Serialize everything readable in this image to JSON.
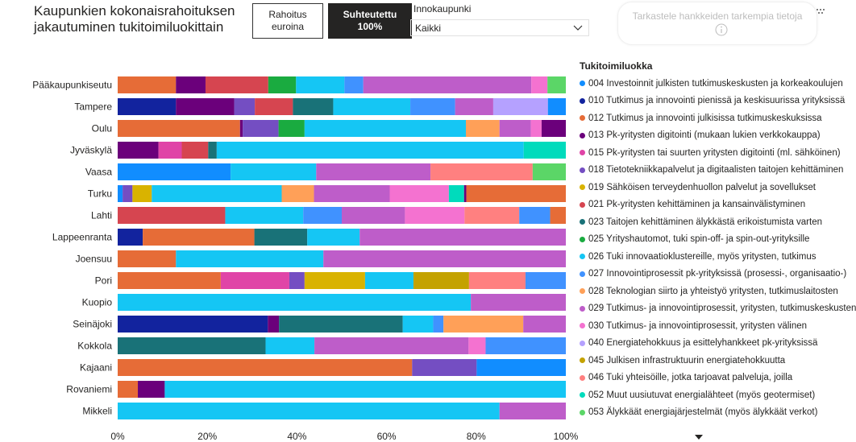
{
  "header": {
    "title_line1": "Kaupunkien kokonaisrahoituksen",
    "title_line2": "jakautuminen tukitoimiluokittain",
    "toggle_euros_line1": "Rahoitus",
    "toggle_euros_line2": "euroina",
    "toggle_percent_line1": "Suhteutettu",
    "toggle_percent_line2": "100%",
    "slicer_label": "Innokaupunki",
    "slicer_value": "Kaikki",
    "info_card_text": "Tarkastele hankkeiden tarkempia tietoja"
  },
  "legend_title": "Tukitoimiluokka",
  "chart_data": {
    "type": "bar",
    "orientation": "horizontal",
    "stacked": "100%",
    "xlim": [
      0,
      100
    ],
    "x_ticks": [
      "0%",
      "20%",
      "40%",
      "60%",
      "80%",
      "100%"
    ],
    "categories": [
      "Pääkaupunkiseutu",
      "Tampere",
      "Oulu",
      "Jyväskylä",
      "Vaasa",
      "Turku",
      "Lahti",
      "Lappeenranta",
      "Joensuu",
      "Pori",
      "Kuopio",
      "Seinäjoki",
      "Kokkola",
      "Kajaani",
      "Rovaniemi",
      "Mikkeli"
    ],
    "legend": [
      {
        "name": "004 Investoinnit julkisten tutkimuskeskusten ja korkeakoulujen",
        "color": "#118dff"
      },
      {
        "name": "010 Tutkimus ja innovointi pienissä ja keskisuurissa yrityksissä",
        "color": "#12239e"
      },
      {
        "name": "012 Tutkimus ja innovointi julkisissa tutkimuskeskuksissa",
        "color": "#e66c37"
      },
      {
        "name": "013 Pk-yritysten digitointi (mukaan lukien verkkokauppa)",
        "color": "#6b007b"
      },
      {
        "name": "015 Pk-yritysten tai suurten yritysten digitointi (ml. sähköinen)",
        "color": "#e044a7"
      },
      {
        "name": "018 Tietotekniikkapalvelut ja digitaalisten taitojen kehittäminen",
        "color": "#744ec2"
      },
      {
        "name": "019 Sähköisen terveydenhuollon palvelut ja sovellukset",
        "color": "#d9b300"
      },
      {
        "name": "021 Pk-yritysten kehittäminen ja kansainvälistyminen",
        "color": "#d64550"
      },
      {
        "name": "023 Taitojen kehittäminen älykkästä erikoistumista varten",
        "color": "#197278"
      },
      {
        "name": "025 Yrityshautomot, tuki spin-off- ja spin-out-yrityksille",
        "color": "#1aab40"
      },
      {
        "name": "026 Tuki innovaatioklustereille, myös yritysten, tutkimus",
        "color": "#15c6f4"
      },
      {
        "name": "027 Innovointiprosessit pk-yrityksissä (prosessi-, organisaatio-)",
        "color": "#4092ff"
      },
      {
        "name": "028 Teknologian siirto ja yhteistyö yritysten, tutkimuslaitosten",
        "color": "#ffa058"
      },
      {
        "name": "029 Tutkimus- ja innovointiprosessit, yritysten, tutkimuskeskusten",
        "color": "#be5dc9"
      },
      {
        "name": "030 Tutkimus- ja innovointiprosessit, yritysten välinen",
        "color": "#f472d0"
      },
      {
        "name": "040 Energiatehokkuus ja esittelyhankkeet pk-yrityksissä",
        "color": "#b5a1ff"
      },
      {
        "name": "045 Julkisen infrastruktuurin energiatehokkuutta",
        "color": "#c4a200"
      },
      {
        "name": "046 Tuki yhteisöille, jotka tarjoavat palveluja, joilla",
        "color": "#ff8080"
      },
      {
        "name": "052 Muut uusiutuvat energialähteet (myös geotermiset)",
        "color": "#00dbbc"
      },
      {
        "name": "053 Älykkäät energiajärjestelmät (myös älykkäät verkot)",
        "color": "#5bd667"
      }
    ],
    "rows": [
      {
        "category": "Pääkaupunkiseutu",
        "segments": [
          {
            "code": "012",
            "value": 13
          },
          {
            "code": "013",
            "value": 6.6
          },
          {
            "code": "021",
            "value": 14
          },
          {
            "code": "025",
            "value": 6.2
          },
          {
            "code": "026",
            "value": 10.8
          },
          {
            "code": "027",
            "value": 4.2
          },
          {
            "code": "029",
            "value": 37.5
          },
          {
            "code": "030",
            "value": 3.6
          },
          {
            "code": "053",
            "value": 4.1
          }
        ]
      },
      {
        "category": "Tampere",
        "segments": [
          {
            "code": "010",
            "value": 13
          },
          {
            "code": "013",
            "value": 13
          },
          {
            "code": "018",
            "value": 4.6
          },
          {
            "code": "021",
            "value": 8.5
          },
          {
            "code": "023",
            "value": 9
          },
          {
            "code": "026",
            "value": 17.2
          },
          {
            "code": "027",
            "value": 10
          },
          {
            "code": "029",
            "value": 8.5
          },
          {
            "code": "040",
            "value": 12.2
          },
          {
            "code": "004",
            "value": 4
          }
        ]
      },
      {
        "category": "Oulu",
        "segments": [
          {
            "code": "012",
            "value": 27.3
          },
          {
            "code": "013",
            "value": 0.6
          },
          {
            "code": "018",
            "value": 8
          },
          {
            "code": "025",
            "value": 5.8
          },
          {
            "code": "026",
            "value": 36
          },
          {
            "code": "028",
            "value": 7.5
          },
          {
            "code": "029",
            "value": 7
          },
          {
            "code": "030",
            "value": 2.4
          },
          {
            "code": "013",
            "value": 5.4
          }
        ]
      },
      {
        "category": "Jyväskylä",
        "segments": [
          {
            "code": "013",
            "value": 9.1
          },
          {
            "code": "015",
            "value": 5.2
          },
          {
            "code": "021",
            "value": 5.9
          },
          {
            "code": "023",
            "value": 1.9
          },
          {
            "code": "026",
            "value": 68.5
          },
          {
            "code": "052",
            "value": 9.4
          }
        ]
      },
      {
        "category": "Vaasa",
        "segments": [
          {
            "code": "004",
            "value": 25.2
          },
          {
            "code": "026",
            "value": 19.1
          },
          {
            "code": "029",
            "value": 25.5
          },
          {
            "code": "046",
            "value": 22.8
          },
          {
            "code": "053",
            "value": 7.4
          }
        ]
      },
      {
        "category": "Turku",
        "segments": [
          {
            "code": "004",
            "value": 1.1
          },
          {
            "code": "018",
            "value": 2.2
          },
          {
            "code": "019",
            "value": 4.3
          },
          {
            "code": "026",
            "value": 29
          },
          {
            "code": "028",
            "value": 7.2
          },
          {
            "code": "029",
            "value": 16.9
          },
          {
            "code": "030",
            "value": 13.2
          },
          {
            "code": "052",
            "value": 3.4
          },
          {
            "code": "013",
            "value": 0.5
          },
          {
            "code": "012",
            "value": 22.2
          }
        ]
      },
      {
        "category": "Lahti",
        "segments": [
          {
            "code": "021",
            "value": 24
          },
          {
            "code": "026",
            "value": 17.4
          },
          {
            "code": "027",
            "value": 8.6
          },
          {
            "code": "029",
            "value": 14.1
          },
          {
            "code": "030",
            "value": 13.3
          },
          {
            "code": "046",
            "value": 12.2
          },
          {
            "code": "027",
            "value": 6.9
          },
          {
            "code": "012",
            "value": 3.5
          }
        ]
      },
      {
        "category": "Lappeenranta",
        "segments": [
          {
            "code": "010",
            "value": 5.6
          },
          {
            "code": "012",
            "value": 24.9
          },
          {
            "code": "023",
            "value": 11.8
          },
          {
            "code": "026",
            "value": 11.7
          },
          {
            "code": "029",
            "value": 46
          }
        ]
      },
      {
        "category": "Joensuu",
        "segments": [
          {
            "code": "012",
            "value": 13
          },
          {
            "code": "026",
            "value": 32.9
          },
          {
            "code": "029",
            "value": 54.1
          }
        ]
      },
      {
        "category": "Pori",
        "segments": [
          {
            "code": "012",
            "value": 23
          },
          {
            "code": "015",
            "value": 15.3
          },
          {
            "code": "018",
            "value": 3.4
          },
          {
            "code": "019",
            "value": 13.5
          },
          {
            "code": "026",
            "value": 10.8
          },
          {
            "code": "045",
            "value": 12.4
          },
          {
            "code": "046",
            "value": 12.6
          },
          {
            "code": "027",
            "value": 9
          }
        ]
      },
      {
        "category": "Kuopio",
        "segments": [
          {
            "code": "026",
            "value": 78.8
          },
          {
            "code": "029",
            "value": 21.2
          }
        ]
      },
      {
        "category": "Seinäjoki",
        "segments": [
          {
            "code": "010",
            "value": 33.5
          },
          {
            "code": "013",
            "value": 2.5
          },
          {
            "code": "023",
            "value": 27.6
          },
          {
            "code": "026",
            "value": 6.8
          },
          {
            "code": "027",
            "value": 2.3
          },
          {
            "code": "028",
            "value": 17.8
          },
          {
            "code": "029",
            "value": 9.5
          }
        ]
      },
      {
        "category": "Kokkola",
        "segments": [
          {
            "code": "023",
            "value": 33
          },
          {
            "code": "026",
            "value": 10.9
          },
          {
            "code": "029",
            "value": 34.4
          },
          {
            "code": "030",
            "value": 3.8
          },
          {
            "code": "027",
            "value": 17.9
          }
        ]
      },
      {
        "category": "Kajaani",
        "segments": [
          {
            "code": "012",
            "value": 65.7
          },
          {
            "code": "018",
            "value": 14.4
          },
          {
            "code": "004",
            "value": 19.9
          }
        ]
      },
      {
        "category": "Rovaniemi",
        "segments": [
          {
            "code": "012",
            "value": 4.5
          },
          {
            "code": "013",
            "value": 6
          },
          {
            "code": "026",
            "value": 89.5
          }
        ]
      },
      {
        "category": "Mikkeli",
        "segments": [
          {
            "code": "026",
            "value": 85.2
          },
          {
            "code": "029",
            "value": 14.8
          }
        ]
      }
    ]
  }
}
